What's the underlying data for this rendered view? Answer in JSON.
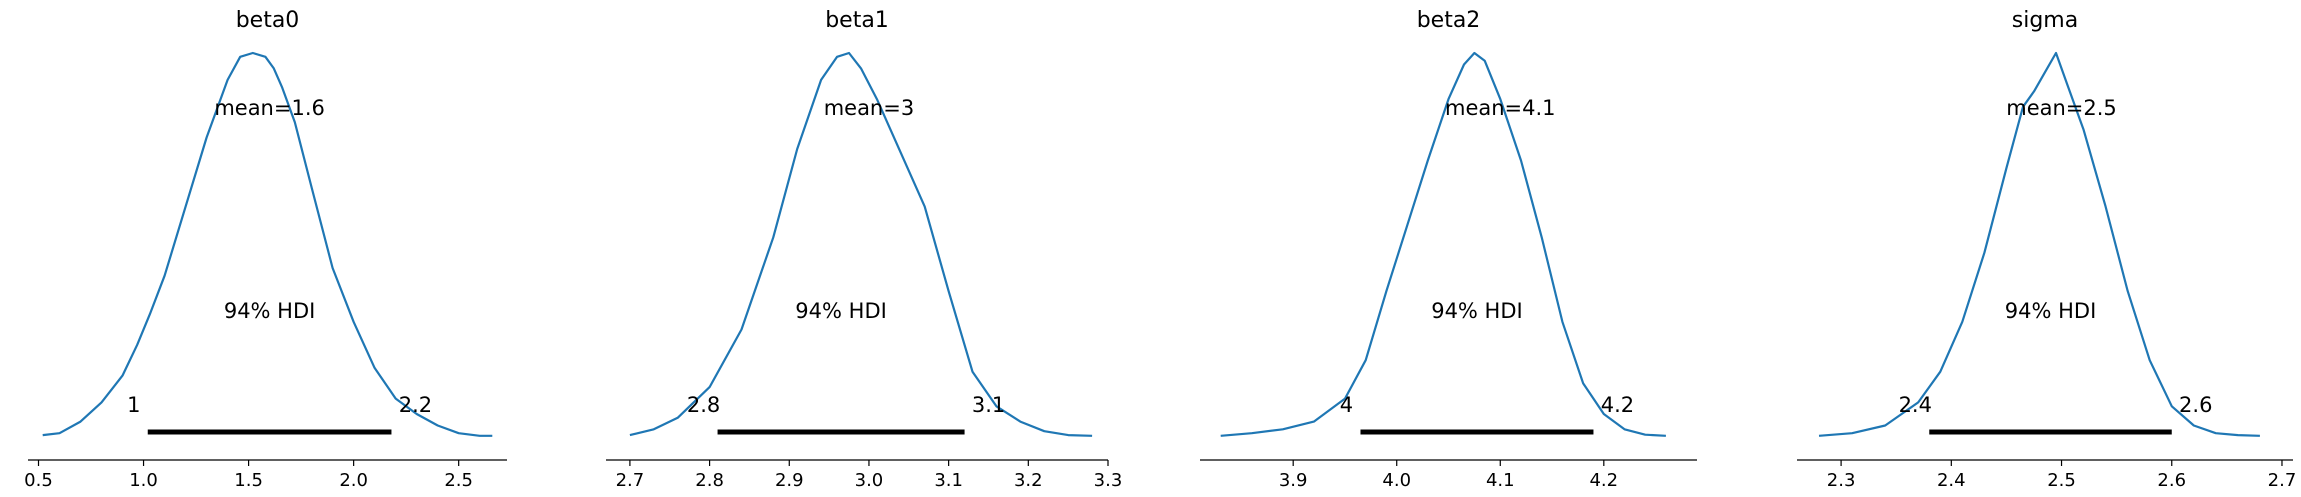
{
  "chart_data": [
    {
      "type": "area",
      "title": "beta0",
      "xlim": [
        0.45,
        2.73
      ],
      "xticks": [
        0.5,
        1.0,
        1.5,
        2.0,
        2.5
      ],
      "xtick_labels": [
        "0.5",
        "1.0",
        "1.5",
        "2.0",
        "2.5"
      ],
      "density": {
        "x": [
          0.52,
          0.6,
          0.7,
          0.8,
          0.9,
          0.97,
          1.03,
          1.1,
          1.2,
          1.3,
          1.4,
          1.46,
          1.52,
          1.58,
          1.62,
          1.66,
          1.72,
          1.8,
          1.9,
          2.0,
          2.1,
          2.2,
          2.3,
          2.4,
          2.5,
          2.6,
          2.66
        ],
        "y": [
          0.005,
          0.01,
          0.04,
          0.09,
          0.16,
          0.24,
          0.32,
          0.42,
          0.6,
          0.78,
          0.93,
          0.99,
          1.0,
          0.99,
          0.96,
          0.91,
          0.82,
          0.65,
          0.44,
          0.3,
          0.18,
          0.1,
          0.06,
          0.03,
          0.01,
          0.003,
          0.003
        ]
      },
      "mean": 1.6,
      "mean_label": "mean=1.6",
      "hdi_label": "94% HDI",
      "hdi": [
        1.02,
        2.18
      ],
      "hdi_low_label": "1",
      "hdi_high_label": "2.2",
      "line_color": "#1f77b4"
    },
    {
      "type": "area",
      "title": "beta1",
      "xlim": [
        2.67,
        3.3
      ],
      "xticks": [
        2.7,
        2.8,
        2.9,
        3.0,
        3.1,
        3.2,
        3.3
      ],
      "xtick_labels": [
        "2.7",
        "2.8",
        "2.9",
        "3.0",
        "3.1",
        "3.2",
        "3.3"
      ],
      "density": {
        "x": [
          2.7,
          2.73,
          2.76,
          2.8,
          2.84,
          2.88,
          2.91,
          2.94,
          2.96,
          2.975,
          2.99,
          3.01,
          3.04,
          3.07,
          3.1,
          3.13,
          3.16,
          3.19,
          3.22,
          3.25,
          3.28
        ],
        "y": [
          0.005,
          0.02,
          0.05,
          0.13,
          0.28,
          0.52,
          0.75,
          0.93,
          0.99,
          1.0,
          0.96,
          0.88,
          0.74,
          0.6,
          0.38,
          0.17,
          0.08,
          0.04,
          0.015,
          0.005,
          0.003
        ]
      },
      "mean": 3.0,
      "mean_label": "mean=3",
      "hdi_label": "94% HDI",
      "hdi": [
        2.81,
        3.12
      ],
      "hdi_low_label": "2.8",
      "hdi_high_label": "3.1",
      "line_color": "#1f77b4"
    },
    {
      "type": "area",
      "title": "beta2",
      "xlim": [
        3.81,
        4.29
      ],
      "xticks": [
        3.9,
        4.0,
        4.1,
        4.2
      ],
      "xtick_labels": [
        "3.9",
        "4.0",
        "4.1",
        "4.2"
      ],
      "density": {
        "x": [
          3.83,
          3.86,
          3.89,
          3.92,
          3.95,
          3.97,
          3.99,
          4.01,
          4.03,
          4.05,
          4.065,
          4.075,
          4.085,
          4.1,
          4.12,
          4.14,
          4.16,
          4.18,
          4.2,
          4.22,
          4.24,
          4.26
        ],
        "y": [
          0.003,
          0.01,
          0.02,
          0.04,
          0.1,
          0.2,
          0.38,
          0.55,
          0.72,
          0.88,
          0.97,
          1.0,
          0.98,
          0.88,
          0.72,
          0.52,
          0.3,
          0.14,
          0.06,
          0.02,
          0.006,
          0.003
        ]
      },
      "mean": 4.1,
      "mean_label": "mean=4.1",
      "hdi_label": "94% HDI",
      "hdi": [
        3.965,
        4.19
      ],
      "hdi_low_label": "4",
      "hdi_high_label": "4.2",
      "line_color": "#1f77b4"
    },
    {
      "type": "area",
      "title": "sigma",
      "xlim": [
        2.26,
        2.71
      ],
      "xticks": [
        2.3,
        2.4,
        2.5,
        2.6,
        2.7
      ],
      "xtick_labels": [
        "2.3",
        "2.4",
        "2.5",
        "2.6",
        "2.7"
      ],
      "density": {
        "x": [
          2.28,
          2.31,
          2.34,
          2.37,
          2.39,
          2.41,
          2.43,
          2.45,
          2.465,
          2.475,
          2.485,
          2.495,
          2.505,
          2.52,
          2.54,
          2.56,
          2.58,
          2.6,
          2.62,
          2.64,
          2.66,
          2.68
        ],
        "y": [
          0.003,
          0.01,
          0.03,
          0.09,
          0.17,
          0.3,
          0.48,
          0.7,
          0.86,
          0.9,
          0.95,
          1.0,
          0.92,
          0.8,
          0.6,
          0.38,
          0.2,
          0.08,
          0.03,
          0.01,
          0.005,
          0.003
        ]
      },
      "mean": 2.5,
      "mean_label": "mean=2.5",
      "hdi_label": "94% HDI",
      "hdi": [
        2.38,
        2.6
      ],
      "hdi_low_label": "2.4",
      "hdi_high_label": "2.6",
      "line_color": "#1f77b4"
    }
  ]
}
